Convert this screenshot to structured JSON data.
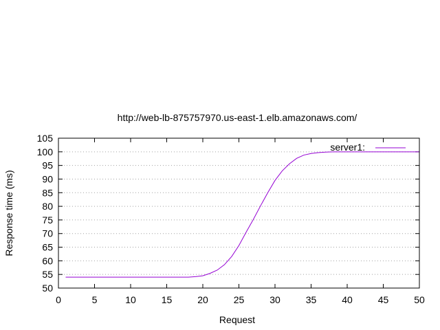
{
  "chart_data": {
    "type": "line",
    "title": "http://web-lb-875757970.us-east-1.elb.amazonaws.com/",
    "xlabel": "Request",
    "ylabel": "Response time (ms)",
    "xlim": [
      0,
      50
    ],
    "ylim": [
      50,
      105
    ],
    "xticks": [
      0,
      5,
      10,
      15,
      20,
      25,
      30,
      35,
      40,
      45,
      50
    ],
    "yticks": [
      50,
      55,
      60,
      65,
      70,
      75,
      80,
      85,
      90,
      95,
      100,
      105
    ],
    "grid": "horizontal dotted",
    "legend_position": "top-right",
    "series": [
      {
        "name": "server1:",
        "color": "#9400d3",
        "x": [
          1,
          2,
          3,
          4,
          5,
          6,
          7,
          8,
          9,
          10,
          11,
          12,
          13,
          14,
          15,
          16,
          17,
          18,
          19,
          20,
          21,
          22,
          23,
          24,
          25,
          26,
          27,
          28,
          29,
          30,
          31,
          32,
          33,
          34,
          35,
          36,
          37,
          38,
          39,
          40,
          41,
          42,
          43,
          44,
          45,
          46,
          47,
          48,
          49,
          50
        ],
        "values": [
          54,
          54,
          54,
          54,
          54,
          54,
          54,
          54,
          54,
          54,
          54,
          54,
          54,
          54,
          54,
          54,
          54,
          54,
          54.2,
          54.5,
          55.4,
          56.6,
          58.6,
          61.6,
          65.6,
          70.5,
          75.2,
          80.2,
          85,
          89.5,
          93,
          95.6,
          97.6,
          98.8,
          99.4,
          99.7,
          99.9,
          100,
          100,
          100,
          100,
          100,
          100,
          100,
          100,
          100,
          100,
          100,
          100,
          100
        ]
      }
    ]
  }
}
